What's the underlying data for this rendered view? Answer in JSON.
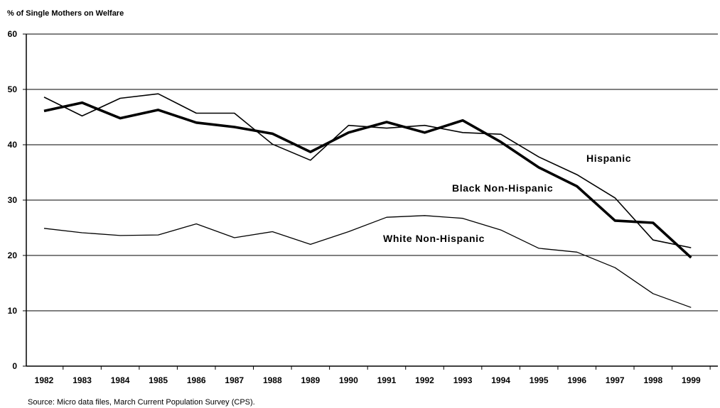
{
  "chart_data": {
    "type": "line",
    "title": "",
    "ylabel": "% of Single Mothers on Welfare",
    "xlabel": "",
    "source": "Source: Micro data files, March Current Population Survey (CPS).",
    "ylim": [
      0,
      60
    ],
    "yticks": [
      0,
      10,
      20,
      30,
      40,
      50,
      60
    ],
    "grid": "horizontal",
    "x": [
      "1982",
      "1983",
      "1984",
      "1985",
      "1986",
      "1987",
      "1988",
      "1989",
      "1990",
      "1991",
      "1992",
      "1993",
      "1994",
      "1995",
      "1996",
      "1997",
      "1998",
      "1999"
    ],
    "series": [
      {
        "name": "Hispanic",
        "values": [
          48.6,
          45.2,
          48.4,
          49.2,
          45.7,
          45.7,
          40.1,
          37.2,
          43.5,
          43.0,
          43.5,
          42.2,
          41.9,
          37.8,
          34.6,
          30.4,
          22.8,
          21.4
        ]
      },
      {
        "name": "Black Non-Hispanic",
        "values": [
          46.1,
          47.6,
          44.8,
          46.3,
          44.0,
          43.2,
          42.0,
          38.7,
          42.2,
          44.1,
          42.2,
          44.4,
          40.5,
          35.9,
          32.5,
          26.3,
          25.9,
          19.6
        ]
      },
      {
        "name": "White Non-Hispanic",
        "values": [
          24.9,
          24.1,
          23.6,
          23.7,
          25.7,
          23.2,
          24.3,
          22.0,
          24.3,
          26.9,
          27.2,
          26.7,
          24.6,
          21.3,
          20.6,
          17.8,
          13.1,
          10.6
        ]
      }
    ],
    "colors": {
      "line": "#000000",
      "background": "#ffffff"
    }
  }
}
